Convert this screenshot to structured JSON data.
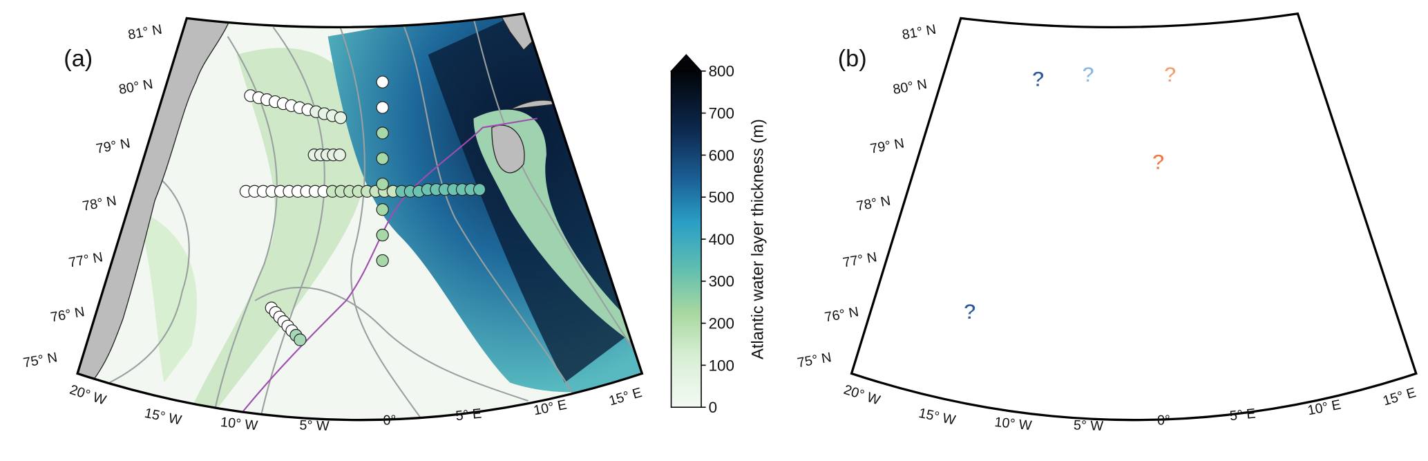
{
  "panels": [
    {
      "label": "(a)",
      "lat_labels": [
        "81° N",
        "80° N",
        "79° N",
        "78° N",
        "77° N",
        "76° N",
        "75° N"
      ],
      "lon_labels": [
        "20° W",
        "15° W",
        "10° W",
        "5° W",
        "0°",
        "5° E",
        "10° E",
        "15° E"
      ]
    },
    {
      "label": "(b)",
      "lat_labels": [
        "81° N",
        "80° N",
        "79° N",
        "78° N",
        "77° N",
        "76° N",
        "75° N"
      ],
      "lon_labels": [
        "20° W",
        "15° W",
        "10° W",
        "5° W",
        "0°",
        "5° E",
        "10° E",
        "15° E"
      ]
    }
  ],
  "colorbar": {
    "label": "Atlantic water layer thickness (m)",
    "lim": [
      0,
      800
    ],
    "ticks": [
      0,
      100,
      200,
      300,
      400,
      500,
      600,
      700,
      800
    ]
  },
  "annotations": [
    "?",
    "?",
    "?",
    "?",
    "?"
  ]
}
